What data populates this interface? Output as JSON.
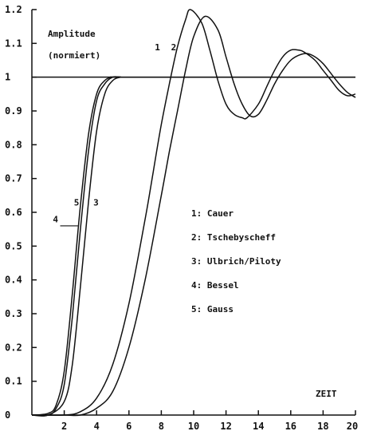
{
  "chart_data": {
    "type": "line",
    "title": "",
    "ylabel": "Amplitude",
    "ylabel_sub": "(normiert)",
    "xlabel": "ZEIT",
    "xlim": [
      0,
      20
    ],
    "ylim": [
      0,
      1.2
    ],
    "x_ticks": [
      {
        "value": 2,
        "label": "2"
      },
      {
        "value": 4,
        "label": "4"
      },
      {
        "value": 6,
        "label": "6"
      },
      {
        "value": 8,
        "label": "8"
      },
      {
        "value": 10,
        "label": "10"
      },
      {
        "value": 12,
        "label": "12"
      },
      {
        "value": 14,
        "label": "14"
      },
      {
        "value": 16,
        "label": "16"
      },
      {
        "value": 18,
        "label": "18"
      },
      {
        "value": 20,
        "label": "20"
      }
    ],
    "y_ticks": [
      {
        "value": 0,
        "label": "0"
      },
      {
        "value": 0.1,
        "label": "0.1"
      },
      {
        "value": 0.2,
        "label": "0.2"
      },
      {
        "value": 0.3,
        "label": "0.3"
      },
      {
        "value": 0.4,
        "label": "0.4"
      },
      {
        "value": 0.5,
        "label": "0.5"
      },
      {
        "value": 0.6,
        "label": "0.6"
      },
      {
        "value": 0.7,
        "label": "0.7"
      },
      {
        "value": 0.8,
        "label": "0.8"
      },
      {
        "value": 0.9,
        "label": "0.9"
      },
      {
        "value": 1.0,
        "label": "1"
      },
      {
        "value": 1.1,
        "label": "1.1"
      },
      {
        "value": 1.2,
        "label": "1.2"
      }
    ],
    "reference_line": {
      "y": 1.0
    },
    "grid": false,
    "legend_position": "center-right",
    "legend": [
      {
        "key": "1",
        "text": "1: Cauer"
      },
      {
        "key": "2",
        "text": "2: Tschebyscheff"
      },
      {
        "key": "3",
        "text": "3: Ulbrich/Piloty"
      },
      {
        "key": "4",
        "text": "4: Bessel"
      },
      {
        "key": "5",
        "text": "5: Gauss"
      }
    ],
    "series": [
      {
        "key": "1",
        "x": [
          0,
          2,
          3,
          4,
          5,
          6,
          7,
          7.5,
          8,
          8.5,
          9,
          9.5,
          9.8,
          10.5,
          11,
          11.5,
          12,
          12.5,
          13,
          13.3,
          14,
          14.5,
          15,
          15.5,
          16,
          16.5,
          16.8,
          17.5,
          18,
          18.5,
          19,
          19.5,
          20
        ],
        "y": [
          0,
          0,
          0.01,
          0.05,
          0.15,
          0.33,
          0.58,
          0.72,
          0.86,
          0.98,
          1.09,
          1.17,
          1.2,
          1.16,
          1.08,
          0.99,
          0.92,
          0.89,
          0.88,
          0.88,
          0.92,
          0.97,
          1.02,
          1.06,
          1.08,
          1.08,
          1.075,
          1.05,
          1.02,
          0.99,
          0.96,
          0.945,
          0.95
        ]
      },
      {
        "key": "2",
        "x": [
          0,
          2,
          3,
          4,
          5,
          6,
          7,
          8,
          8.5,
          9,
          9.5,
          10,
          10.7,
          11.5,
          12,
          12.5,
          13,
          13.5,
          14,
          14.5,
          15,
          15.5,
          16,
          16.5,
          17,
          17.5,
          18,
          18.5,
          19,
          19.5,
          20
        ],
        "y": [
          0,
          0,
          0,
          0.02,
          0.07,
          0.2,
          0.4,
          0.65,
          0.78,
          0.9,
          1.02,
          1.12,
          1.18,
          1.14,
          1.06,
          0.98,
          0.92,
          0.885,
          0.89,
          0.93,
          0.98,
          1.02,
          1.05,
          1.065,
          1.07,
          1.06,
          1.04,
          1.01,
          0.98,
          0.955,
          0.94
        ]
      },
      {
        "key": "3",
        "x": [
          0,
          1,
          2,
          2.5,
          3,
          3.5,
          4,
          4.5,
          5,
          5.5,
          6,
          20
        ],
        "y": [
          0,
          0,
          0.04,
          0.15,
          0.38,
          0.63,
          0.84,
          0.95,
          0.99,
          1.0,
          1.0,
          1.0
        ]
      },
      {
        "key": "4",
        "x": [
          0,
          1,
          1.5,
          2,
          2.5,
          3,
          3.5,
          4,
          4.5,
          5,
          5.5,
          6,
          20
        ],
        "y": [
          0,
          0.005,
          0.03,
          0.13,
          0.36,
          0.62,
          0.83,
          0.95,
          0.99,
          1.0,
          1.0,
          1.0,
          1.0
        ]
      },
      {
        "key": "5",
        "x": [
          0,
          1,
          1.5,
          2,
          2.5,
          3,
          3.5,
          4,
          4.5,
          5,
          5.5,
          6,
          20
        ],
        "y": [
          0,
          0,
          0.02,
          0.09,
          0.29,
          0.55,
          0.78,
          0.93,
          0.98,
          1.0,
          1.0,
          1.0,
          1.0
        ]
      }
    ],
    "curve_labels": [
      {
        "key": "1",
        "text": "1",
        "x": 7.6,
        "y": 1.08
      },
      {
        "key": "2",
        "text": "2",
        "x": 8.6,
        "y": 1.08
      },
      {
        "key": "3",
        "text": "3",
        "x": 3.8,
        "y": 0.62
      },
      {
        "key": "4",
        "text": "4",
        "x": 1.3,
        "y": 0.57
      },
      {
        "key": "5",
        "text": "5",
        "x": 2.6,
        "y": 0.62
      }
    ]
  }
}
